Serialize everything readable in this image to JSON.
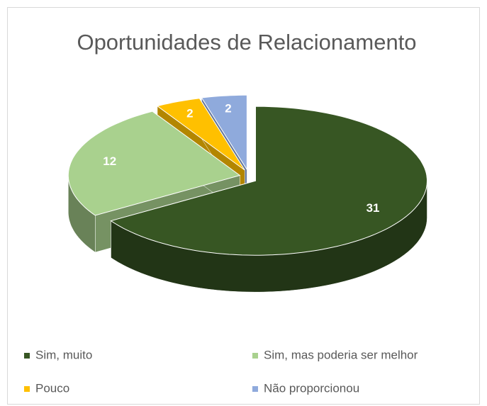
{
  "chart_data": {
    "type": "pie",
    "title": "Oportunidades de Relacionamento",
    "categories": [
      "Sim, muito",
      "Sim, mas poderia ser melhor",
      "Pouco",
      "Não proporcionou"
    ],
    "values": [
      31,
      12,
      2,
      2
    ],
    "colors": [
      "#375623",
      "#a9d18e",
      "#ffc000",
      "#8faadc"
    ],
    "legend": "bottom",
    "exploded": true,
    "three_d": true
  }
}
